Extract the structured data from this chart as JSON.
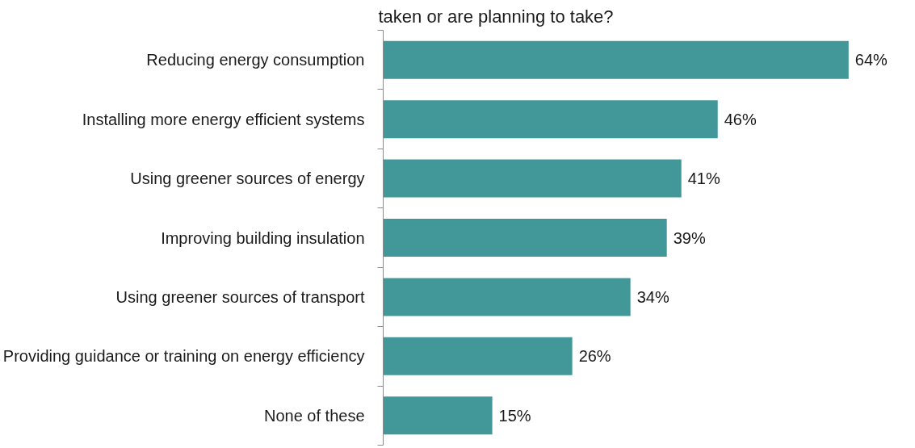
{
  "chart_data": {
    "type": "bar",
    "orientation": "horizontal",
    "title": "taken or are planning to take?",
    "categories": [
      "Reducing energy consumption",
      "Installing more energy efficient systems",
      "Using greener sources of energy",
      "Improving building insulation",
      "Using greener sources of transport",
      "Providing guidance or training on energy efficiency",
      "None of these"
    ],
    "values": [
      64,
      46,
      41,
      39,
      34,
      26,
      15
    ],
    "value_labels": [
      "64%",
      "46%",
      "41%",
      "39%",
      "34%",
      "26%",
      "15%"
    ],
    "color": "#429898",
    "grid": false,
    "tick_labels": "y"
  }
}
